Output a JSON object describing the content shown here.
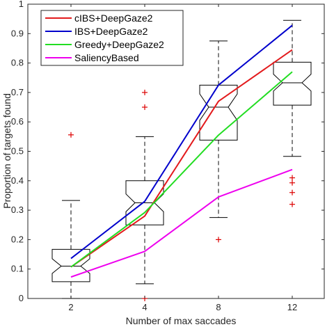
{
  "chart_data": {
    "type": "line",
    "title": "",
    "xlabel": "Number of max saccades",
    "ylabel": "Proportion of targets found",
    "categories": [
      "2",
      "4",
      "8",
      "12"
    ],
    "ylim": [
      0,
      1
    ],
    "yticks": [
      "0",
      "0.1",
      "0.2",
      "0.3",
      "0.4",
      "0.5",
      "0.6",
      "0.7",
      "0.8",
      "0.9",
      "1"
    ],
    "legend_position": "top-left",
    "grid": false,
    "series": [
      {
        "name": "cIBS+DeepGaze2",
        "color": "#e31a1c",
        "values": [
          0.107,
          0.28,
          0.67,
          0.845
        ]
      },
      {
        "name": "IBS+DeepGaze2",
        "color": "#0000cc",
        "values": [
          0.136,
          0.33,
          0.725,
          0.928
        ]
      },
      {
        "name": "Greedy+DeepGaze2",
        "color": "#22dd22",
        "values": [
          0.107,
          0.292,
          0.555,
          0.77
        ]
      },
      {
        "name": "SaliencyBased",
        "color": "#ee00ee",
        "values": [
          0.073,
          0.16,
          0.345,
          0.438
        ]
      }
    ],
    "boxplots": [
      {
        "category": "2",
        "whisker_low": 0.0,
        "q1": 0.057,
        "median": 0.11,
        "q3": 0.167,
        "whisker_high": 0.333,
        "notch_low": 0.085,
        "notch_high": 0.135,
        "outliers": [
          0.556
        ]
      },
      {
        "category": "4",
        "whisker_low": 0.05,
        "q1": 0.25,
        "median": 0.325,
        "q3": 0.4,
        "whisker_high": 0.55,
        "notch_low": 0.295,
        "notch_high": 0.355,
        "outliers": [
          0.0,
          0.65,
          0.7
        ]
      },
      {
        "category": "8",
        "whisker_low": 0.275,
        "q1": 0.538,
        "median": 0.65,
        "q3": 0.725,
        "whisker_high": 0.875,
        "notch_low": 0.605,
        "notch_high": 0.695,
        "outliers": [
          0.2
        ]
      },
      {
        "category": "12",
        "whisker_low": 0.483,
        "q1": 0.657,
        "median": 0.733,
        "q3": 0.803,
        "whisker_high": 0.945,
        "notch_low": 0.705,
        "notch_high": 0.762,
        "outliers": [
          0.32,
          0.36,
          0.393,
          0.41
        ]
      }
    ],
    "box_color": "#000000",
    "whisker_color": "#333333",
    "outlier_color": "#dd0000"
  }
}
